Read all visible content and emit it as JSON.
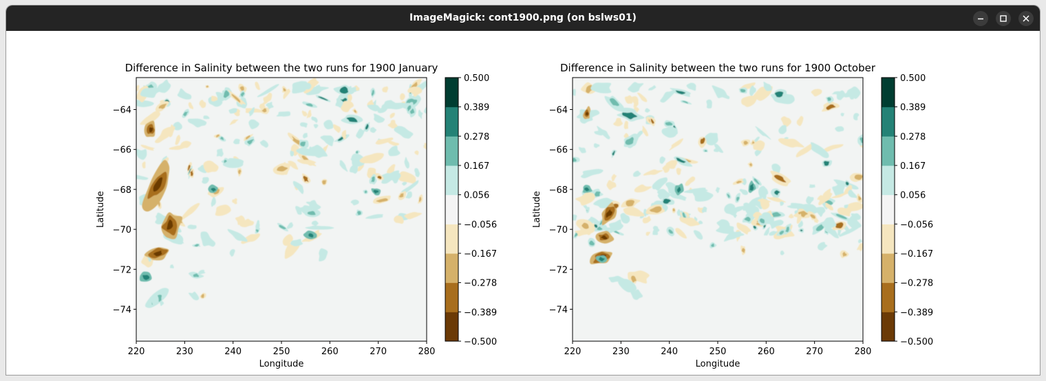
{
  "window": {
    "title": "ImageMagick: cont1900.png (on bslws01)"
  },
  "colorbar": {
    "colors": [
      "#6b3a06",
      "#a86e1d",
      "#d5b16a",
      "#f5e6bf",
      "#f4f4f4",
      "#c5e9e4",
      "#6fbcae",
      "#248276",
      "#003d31"
    ]
  },
  "chart_data": [
    {
      "type": "contour",
      "title": "Difference in Salinity between the two runs for 1900 January",
      "xlabel": "Longitude",
      "ylabel": "Latitude",
      "xlim": [
        220,
        280
      ],
      "ylim": [
        -75.6,
        -62.4
      ],
      "xticks": [
        "220",
        "230",
        "240",
        "250",
        "260",
        "270",
        "280"
      ],
      "yticks": [
        "−64",
        "−66",
        "−68",
        "−70",
        "−72",
        "−74"
      ],
      "colorbar_levels": [
        "0.500",
        "0.389",
        "0.278",
        "0.167",
        "0.056",
        "−0.056",
        "−0.167",
        "−0.278",
        "−0.389",
        "−0.500"
      ]
    },
    {
      "type": "contour",
      "title": "Difference in Salinity between the two runs for 1900 October",
      "xlabel": "Longitude",
      "ylabel": "Latitude",
      "xlim": [
        220,
        280
      ],
      "ylim": [
        -75.6,
        -62.4
      ],
      "xticks": [
        "220",
        "230",
        "240",
        "250",
        "260",
        "270",
        "280"
      ],
      "yticks": [
        "−64",
        "−66",
        "−68",
        "−70",
        "−72",
        "−74"
      ],
      "colorbar_levels": [
        "0.500",
        "0.389",
        "0.278",
        "0.167",
        "0.056",
        "−0.056",
        "−0.167",
        "−0.278",
        "−0.389",
        "−0.500"
      ]
    }
  ]
}
